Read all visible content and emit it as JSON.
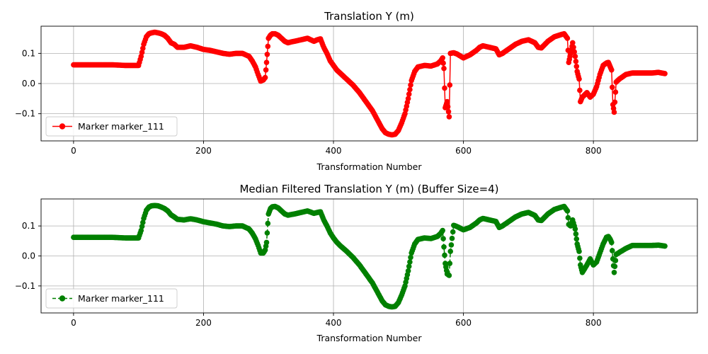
{
  "chart_data": [
    {
      "type": "line",
      "title": "Translation Y (m)",
      "xlabel": "Transformation Number",
      "ylabel": "",
      "xlim": [
        -50,
        960
      ],
      "ylim": [
        -0.19,
        0.19
      ],
      "xticks": [
        0,
        200,
        400,
        600,
        800
      ],
      "yticks": [
        -0.1,
        0.0,
        0.1
      ],
      "ytick_labels": [
        "−0.1",
        "0.0",
        "0.1"
      ],
      "grid": true,
      "legend_position": "lower-left",
      "series": [
        {
          "name": "Marker marker_111",
          "color": "#ff0000",
          "line_style": "solid",
          "marker": "circle",
          "x": [
            0,
            10,
            20,
            30,
            40,
            50,
            60,
            70,
            80,
            90,
            100,
            104,
            108,
            112,
            116,
            120,
            125,
            130,
            135,
            140,
            145,
            150,
            155,
            160,
            170,
            180,
            190,
            200,
            210,
            220,
            230,
            240,
            250,
            260,
            270,
            275,
            280,
            284,
            288,
            292,
            295,
            297,
            300,
            303,
            306,
            310,
            315,
            320,
            325,
            330,
            335,
            340,
            350,
            360,
            370,
            375,
            380,
            385,
            390,
            395,
            400,
            405,
            410,
            420,
            430,
            440,
            450,
            460,
            470,
            475,
            480,
            485,
            490,
            495,
            500,
            505,
            510,
            515,
            520,
            525,
            530,
            540,
            550,
            560,
            565,
            568,
            570,
            572,
            575,
            578,
            580,
            585,
            590,
            600,
            610,
            620,
            625,
            630,
            640,
            650,
            655,
            660,
            670,
            680,
            690,
            700,
            710,
            715,
            720,
            730,
            740,
            750,
            755,
            760,
            762,
            765,
            768,
            772,
            775,
            778,
            780,
            783,
            790,
            795,
            800,
            805,
            810,
            815,
            820,
            823,
            826,
            828,
            830,
            832,
            835,
            840,
            850,
            860,
            870,
            880,
            890,
            900,
            910
          ],
          "y": [
            0.062,
            0.062,
            0.062,
            0.062,
            0.062,
            0.062,
            0.062,
            0.061,
            0.06,
            0.06,
            0.06,
            0.09,
            0.13,
            0.155,
            0.165,
            0.168,
            0.17,
            0.168,
            0.165,
            0.16,
            0.15,
            0.135,
            0.13,
            0.12,
            0.12,
            0.125,
            0.12,
            0.113,
            0.11,
            0.105,
            0.1,
            0.097,
            0.1,
            0.1,
            0.09,
            0.075,
            0.055,
            0.03,
            0.008,
            0.012,
            0.02,
            0.07,
            0.15,
            0.16,
            0.165,
            0.165,
            0.16,
            0.15,
            0.14,
            0.135,
            0.138,
            0.14,
            0.145,
            0.15,
            0.14,
            0.145,
            0.148,
            0.12,
            0.1,
            0.075,
            0.06,
            0.045,
            0.035,
            0.015,
            -0.005,
            -0.03,
            -0.06,
            -0.09,
            -0.13,
            -0.15,
            -0.163,
            -0.168,
            -0.17,
            -0.168,
            -0.155,
            -0.13,
            -0.1,
            -0.05,
            0.01,
            0.04,
            0.055,
            0.06,
            0.058,
            0.065,
            0.075,
            0.085,
            0.05,
            -0.08,
            -0.06,
            -0.11,
            0.1,
            0.102,
            0.098,
            0.085,
            0.095,
            0.11,
            0.12,
            0.125,
            0.12,
            0.115,
            0.095,
            0.1,
            0.115,
            0.13,
            0.14,
            0.145,
            0.135,
            0.12,
            0.118,
            0.14,
            0.155,
            0.162,
            0.165,
            0.15,
            0.07,
            0.1,
            0.135,
            0.09,
            0.04,
            0.015,
            -0.06,
            -0.045,
            -0.03,
            -0.045,
            -0.035,
            -0.01,
            0.03,
            0.06,
            0.068,
            0.07,
            0.055,
            0.045,
            -0.07,
            -0.095,
            0.005,
            0.015,
            0.03,
            0.035,
            0.035,
            0.035,
            0.035,
            0.037,
            0.033
          ]
        }
      ]
    },
    {
      "type": "line",
      "title": "Median Filtered Translation Y (m) (Buffer Size=4)",
      "xlabel": "Transformation Number",
      "ylabel": "",
      "xlim": [
        -50,
        960
      ],
      "ylim": [
        -0.19,
        0.19
      ],
      "xticks": [
        0,
        200,
        400,
        600,
        800
      ],
      "yticks": [
        -0.1,
        0.0,
        0.1
      ],
      "ytick_labels": [
        "−0.1",
        "0.0",
        "0.1"
      ],
      "grid": true,
      "legend_position": "lower-left",
      "series": [
        {
          "name": "Marker marker_111",
          "color": "#008000",
          "line_style": "dashed",
          "marker": "circle",
          "x": [
            0,
            10,
            20,
            30,
            40,
            50,
            60,
            70,
            80,
            90,
            100,
            104,
            108,
            112,
            116,
            120,
            125,
            130,
            135,
            140,
            145,
            150,
            155,
            160,
            170,
            180,
            190,
            200,
            210,
            220,
            230,
            240,
            250,
            260,
            270,
            275,
            280,
            284,
            288,
            292,
            295,
            297,
            300,
            303,
            306,
            310,
            315,
            320,
            325,
            330,
            335,
            340,
            350,
            360,
            370,
            375,
            380,
            385,
            390,
            395,
            400,
            405,
            410,
            420,
            430,
            440,
            450,
            460,
            470,
            475,
            480,
            485,
            490,
            495,
            500,
            505,
            510,
            515,
            520,
            525,
            530,
            540,
            550,
            560,
            565,
            568,
            570,
            572,
            575,
            578,
            580,
            585,
            590,
            600,
            610,
            620,
            625,
            630,
            640,
            650,
            655,
            660,
            670,
            680,
            690,
            700,
            710,
            715,
            720,
            730,
            740,
            750,
            755,
            760,
            762,
            765,
            768,
            772,
            775,
            778,
            780,
            783,
            790,
            795,
            800,
            805,
            810,
            815,
            820,
            823,
            826,
            828,
            830,
            832,
            835,
            840,
            850,
            860,
            870,
            880,
            890,
            900,
            910
          ],
          "y": [
            0.062,
            0.062,
            0.062,
            0.062,
            0.062,
            0.062,
            0.062,
            0.061,
            0.06,
            0.06,
            0.06,
            0.085,
            0.125,
            0.152,
            0.163,
            0.167,
            0.168,
            0.167,
            0.163,
            0.158,
            0.15,
            0.137,
            0.13,
            0.122,
            0.12,
            0.124,
            0.12,
            0.114,
            0.11,
            0.106,
            0.1,
            0.098,
            0.1,
            0.1,
            0.09,
            0.076,
            0.057,
            0.035,
            0.01,
            0.01,
            0.02,
            0.045,
            0.14,
            0.158,
            0.164,
            0.165,
            0.16,
            0.15,
            0.14,
            0.136,
            0.138,
            0.14,
            0.145,
            0.15,
            0.142,
            0.145,
            0.147,
            0.12,
            0.1,
            0.077,
            0.06,
            0.046,
            0.035,
            0.016,
            -0.005,
            -0.03,
            -0.06,
            -0.09,
            -0.13,
            -0.15,
            -0.163,
            -0.168,
            -0.17,
            -0.168,
            -0.155,
            -0.13,
            -0.1,
            -0.05,
            0.01,
            0.04,
            0.055,
            0.06,
            0.058,
            0.065,
            0.075,
            0.085,
            0.03,
            -0.025,
            -0.06,
            -0.065,
            0.015,
            0.102,
            0.098,
            0.087,
            0.095,
            0.11,
            0.12,
            0.125,
            0.12,
            0.115,
            0.095,
            0.1,
            0.115,
            0.13,
            0.14,
            0.145,
            0.135,
            0.12,
            0.118,
            0.14,
            0.155,
            0.162,
            0.165,
            0.15,
            0.105,
            0.1,
            0.12,
            0.09,
            0.04,
            0.015,
            -0.03,
            -0.055,
            -0.03,
            -0.01,
            -0.03,
            -0.02,
            0.01,
            0.04,
            0.062,
            0.065,
            0.055,
            0.045,
            -0.01,
            -0.055,
            0.005,
            0.012,
            0.025,
            0.035,
            0.035,
            0.035,
            0.035,
            0.036,
            0.033
          ]
        }
      ]
    }
  ]
}
